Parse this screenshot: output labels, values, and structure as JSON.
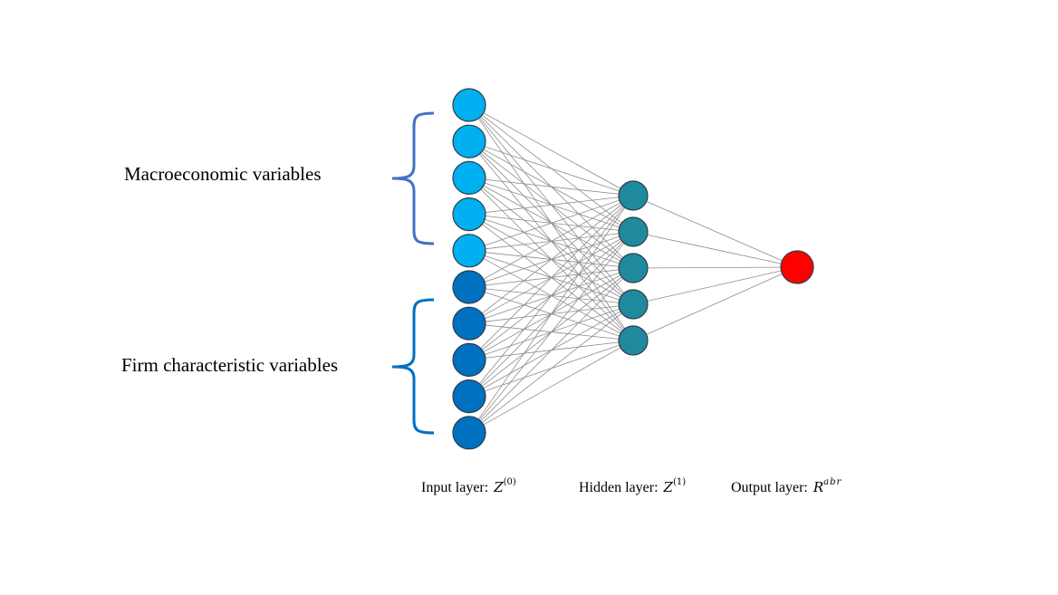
{
  "labels": {
    "macro": "Macroeconomic variables",
    "firm": "Firm characteristic variables"
  },
  "captions": {
    "input_text": "Input layer:",
    "input_symbol": "Z",
    "input_sup": "(0)",
    "hidden_text": "Hidden layer:",
    "hidden_symbol": "Z",
    "hidden_sup": "(1)",
    "output_text": "Output layer:",
    "output_symbol": "R",
    "output_sup": "abr"
  },
  "network": {
    "input_macro_nodes": 5,
    "input_firm_nodes": 5,
    "hidden_nodes": 5,
    "output_nodes": 1
  },
  "colors": {
    "input_macro": "#00b0f0",
    "input_firm": "#0070c0",
    "hidden": "#1f8a9e",
    "output": "#ff0000",
    "edge": "#8c8c8c",
    "brace_macro": "#4472c4",
    "brace_firm": "#0070c0"
  }
}
